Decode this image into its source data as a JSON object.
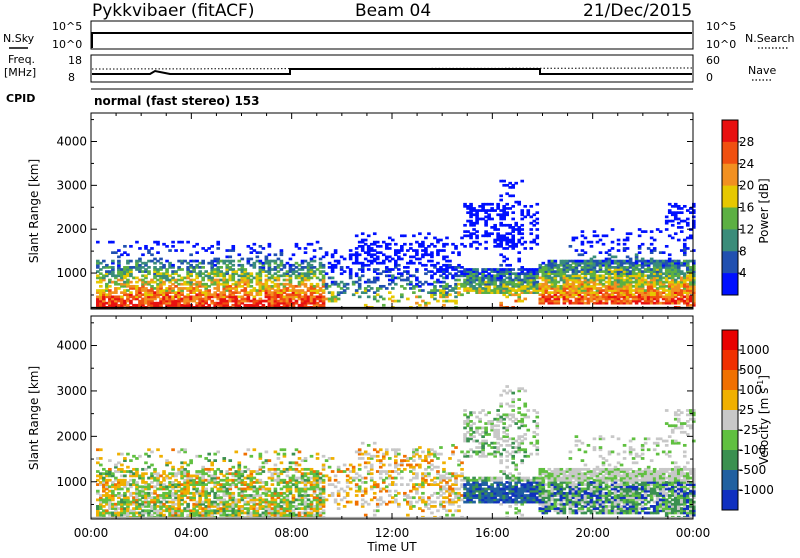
{
  "header": {
    "station": "Pykkvibaer (fitACF)",
    "beam": "Beam 04",
    "date": "21/Dec/2015"
  },
  "strips": {
    "nsky_label": "N.Sky",
    "nsky_ticks": [
      "10^5",
      "10^0"
    ],
    "nsearch_label": "N.Search",
    "nsearch_ticks": [
      "10^5",
      "10^0"
    ],
    "freq_label": "Freq.",
    "freq_unit": "[MHz]",
    "freq_ticks": [
      "18",
      "8"
    ],
    "nave_label": "Nave",
    "nave_ticks": [
      "60",
      "0"
    ],
    "cpid_label": "CPID",
    "cpid_value": "normal (fast stereo) 153"
  },
  "chart_data": [
    {
      "type": "heatmap",
      "panel": "power",
      "ylabel": "Slant Range [km]",
      "yticks": [
        1000,
        2000,
        3000,
        4000
      ],
      "ylim": [
        180,
        4650
      ],
      "xticks": [
        "00:00",
        "04:00",
        "08:00",
        "12:00",
        "16:00",
        "20:00",
        "00:00"
      ],
      "xlim_hours": [
        0,
        24
      ],
      "colorbar": {
        "label": "Power [dB]",
        "ticks": [
          "4",
          "8",
          "12",
          "16",
          "20",
          "24",
          "28"
        ],
        "colors": [
          "#0010ff",
          "#2050b0",
          "#3a8c7a",
          "#5cb043",
          "#e6c800",
          "#f29020",
          "#f05010",
          "#e81010"
        ]
      },
      "echo_regions": [
        {
          "t0": 0.2,
          "t1": 9.3,
          "r0": 200,
          "r1": 1400,
          "level": "high"
        },
        {
          "t0": 9.3,
          "t1": 14.5,
          "r0": 300,
          "r1": 1800,
          "level": "mid"
        },
        {
          "t0": 14.5,
          "t1": 17.8,
          "r0": 500,
          "r1": 3000,
          "level": "mid"
        },
        {
          "t0": 17.8,
          "t1": 24.0,
          "r0": 250,
          "r1": 2800,
          "level": "high"
        }
      ]
    },
    {
      "type": "heatmap",
      "panel": "velocity",
      "ylabel": "Slant Range [km]",
      "yticks": [
        1000,
        2000,
        3000,
        4000
      ],
      "ylim": [
        180,
        4650
      ],
      "xticks": [
        "00:00",
        "04:00",
        "08:00",
        "12:00",
        "16:00",
        "20:00",
        "00:00"
      ],
      "xlim_hours": [
        0,
        24
      ],
      "xlabel": "Time UT",
      "colorbar": {
        "label": "Velocity [m s",
        "label_exp": "-1",
        "label_end": "]",
        "ticks": [
          "1000",
          "500",
          "100",
          "25",
          "-25",
          "-100",
          "-500",
          "-1000"
        ],
        "colors": [
          "#1030c0",
          "#2060a0",
          "#3a9050",
          "#60c040",
          "#c8c8c8",
          "#f0b000",
          "#f07000",
          "#f03000",
          "#e80000"
        ]
      }
    }
  ]
}
